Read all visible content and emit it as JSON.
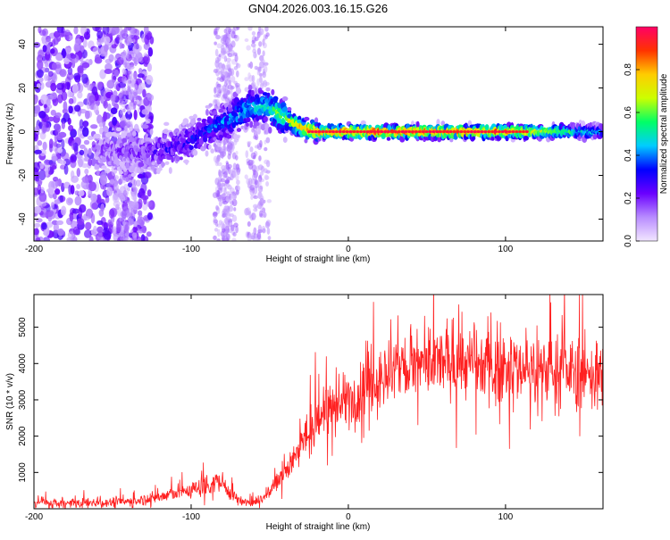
{
  "figure_title": "GN04.2026.003.16.15.G26",
  "chart_data": [
    {
      "type": "heatmap",
      "title": "GN04.2026.003.16.15.G26",
      "xlabel": "Height of straight line (km)",
      "ylabel": "Frequency (Hz)",
      "xlim": [
        -200,
        162
      ],
      "ylim": [
        -50,
        48
      ],
      "x_ticks": [
        -200,
        -100,
        0,
        100
      ],
      "y_ticks": [
        -40,
        -20,
        0,
        20,
        40
      ],
      "x_tick_labels": [
        "-200",
        "-100",
        "0",
        "100"
      ],
      "y_tick_labels": [
        "-40",
        "-20",
        "0",
        "20",
        "40"
      ],
      "colorbar": {
        "label": "Normalized spectral amplitude",
        "range": [
          0,
          1
        ],
        "ticks": [
          0.0,
          0.2,
          0.4,
          0.6,
          0.8
        ],
        "tick_labels": [
          "0.0",
          "0.2",
          "0.4",
          "0.6",
          "0.8"
        ],
        "stops": [
          "#f2e6ff",
          "#b88cff",
          "#6a00ff",
          "#0000ff",
          "#00ccff",
          "#00ff66",
          "#ccff00",
          "#ffcc00",
          "#ff3300",
          "#ff0066"
        ]
      },
      "ridge": {
        "x": [
          -150,
          -130,
          -115,
          -100,
          -85,
          -75,
          -65,
          -55,
          -48,
          -40,
          -30,
          -20,
          0,
          50,
          100,
          162
        ],
        "freq": [
          -8,
          -10,
          -8,
          -4,
          2,
          6,
          10,
          12,
          10,
          6,
          2,
          0,
          0,
          0,
          0,
          0
        ],
        "amplitude": [
          0.15,
          0.2,
          0.25,
          0.3,
          0.35,
          0.4,
          0.45,
          0.5,
          0.55,
          0.65,
          0.8,
          0.85,
          0.9,
          0.9,
          0.85,
          0.4
        ]
      }
    },
    {
      "type": "line",
      "xlabel": "Height of straight line (km)",
      "ylabel": "SNR (10 * v/v)",
      "xlim": [
        -200,
        162
      ],
      "ylim": [
        0,
        5900
      ],
      "x_ticks": [
        -200,
        -100,
        0,
        100
      ],
      "y_ticks": [
        1000,
        2000,
        3000,
        4000,
        5000
      ],
      "x_tick_labels": [
        "-200",
        "-100",
        "0",
        "100"
      ],
      "y_tick_labels": [
        "1000",
        "2000",
        "3000",
        "4000",
        "5000"
      ],
      "color": "#ff2020",
      "series": [
        {
          "name": "SNR",
          "x": [
            -200,
            -180,
            -160,
            -140,
            -130,
            -120,
            -110,
            -100,
            -90,
            -85,
            -80,
            -75,
            -70,
            -65,
            -60,
            -55,
            -50,
            -45,
            -40,
            -35,
            -30,
            -25,
            -20,
            -15,
            -10,
            -5,
            0,
            10,
            20,
            30,
            40,
            50,
            60,
            70,
            80,
            90,
            100,
            110,
            120,
            130,
            140,
            150,
            162
          ],
          "y": [
            150,
            150,
            170,
            200,
            250,
            330,
            430,
            520,
            650,
            740,
            700,
            450,
            250,
            150,
            180,
            280,
            500,
            750,
            1050,
            1400,
            1800,
            2100,
            2400,
            2700,
            2800,
            2900,
            3050,
            3300,
            3600,
            3850,
            3950,
            3950,
            4050,
            4050,
            3950,
            3900,
            3950,
            3900,
            3850,
            3850,
            3800,
            3750,
            3700
          ]
        }
      ]
    }
  ]
}
